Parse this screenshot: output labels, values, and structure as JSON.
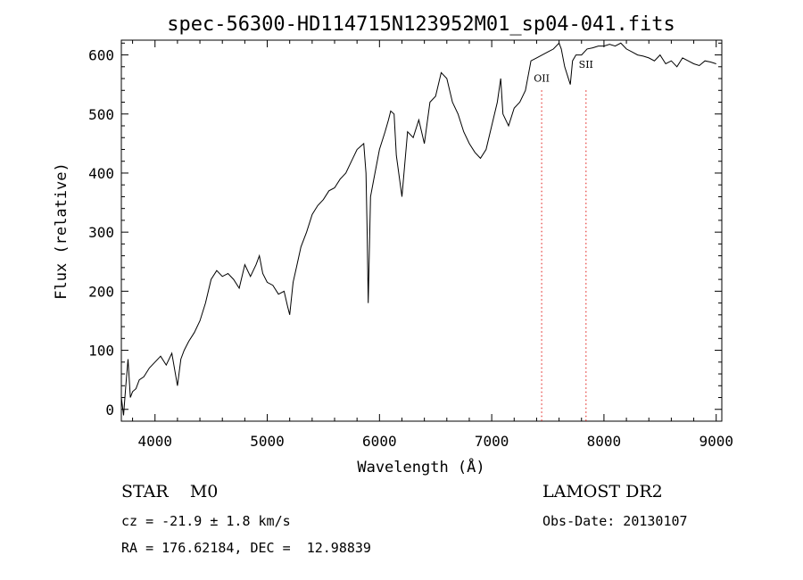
{
  "chart_data": {
    "type": "line",
    "title": "spec-56300-HD114715N123952M01_sp04-041.fits",
    "xlabel": "Wavelength (Å)",
    "ylabel": "Flux (relative)",
    "xlim": [
      3700,
      9050
    ],
    "ylim": [
      -20,
      625
    ],
    "x_ticks": [
      4000,
      5000,
      6000,
      7000,
      8000,
      9000
    ],
    "y_ticks": [
      0,
      100,
      200,
      300,
      400,
      500,
      600
    ],
    "grid": false,
    "series": [
      {
        "x": [
          3700,
          3720,
          3740,
          3760,
          3780,
          3800,
          3830,
          3860,
          3900,
          3950,
          4000,
          4050,
          4100,
          4150,
          4200,
          4230,
          4260,
          4300,
          4350,
          4400,
          4450,
          4500,
          4550,
          4600,
          4650,
          4700,
          4750,
          4800,
          4850,
          4900,
          4930,
          4960,
          5000,
          5050,
          5100,
          5150,
          5180,
          5200,
          5230,
          5260,
          5300,
          5350,
          5400,
          5450,
          5500,
          5550,
          5600,
          5650,
          5700,
          5750,
          5800,
          5830,
          5860,
          5880,
          5890,
          5900,
          5920,
          5950,
          6000,
          6050,
          6080,
          6100,
          6130,
          6150,
          6200,
          6250,
          6300,
          6350,
          6400,
          6450,
          6500,
          6550,
          6600,
          6650,
          6700,
          6750,
          6800,
          6850,
          6900,
          6950,
          7000,
          7050,
          7080,
          7100,
          7150,
          7200,
          7250,
          7300,
          7350,
          7400,
          7450,
          7500,
          7550,
          7600,
          7620,
          7650,
          7700,
          7720,
          7750,
          7800,
          7850,
          7900,
          7950,
          8000,
          8050,
          8100,
          8150,
          8200,
          8250,
          8300,
          8350,
          8400,
          8450,
          8500,
          8550,
          8600,
          8650,
          8700,
          8750,
          8800,
          8850,
          8900,
          8950,
          9000
        ],
        "y": [
          20,
          -10,
          40,
          85,
          20,
          30,
          35,
          50,
          55,
          70,
          80,
          90,
          75,
          95,
          40,
          85,
          100,
          115,
          130,
          150,
          180,
          220,
          235,
          225,
          230,
          220,
          205,
          245,
          225,
          245,
          260,
          230,
          215,
          210,
          195,
          200,
          175,
          160,
          215,
          240,
          275,
          300,
          330,
          345,
          355,
          370,
          375,
          390,
          400,
          420,
          440,
          445,
          450,
          400,
          300,
          180,
          360,
          390,
          440,
          470,
          490,
          505,
          500,
          430,
          360,
          470,
          460,
          490,
          450,
          520,
          530,
          570,
          560,
          520,
          500,
          470,
          450,
          435,
          425,
          440,
          480,
          520,
          560,
          500,
          480,
          510,
          520,
          540,
          590,
          595,
          600,
          605,
          610,
          620,
          610,
          580,
          550,
          590,
          600,
          600,
          610,
          612,
          615,
          615,
          618,
          615,
          620,
          610,
          605,
          600,
          598,
          595,
          590,
          600,
          585,
          590,
          580,
          595,
          590,
          585,
          582,
          590,
          588,
          585
        ]
      }
    ],
    "annotations": [
      {
        "label": "OII",
        "x": 7445
      },
      {
        "label": "SII",
        "x": 7840
      }
    ]
  },
  "info": {
    "object": "STAR    M0",
    "survey": "LAMOST DR2",
    "cz": "cz = -21.9 ± 1.8 km/s",
    "obs_date": "Obs-Date: 20130107",
    "coords": "RA = 176.62184, DEC =  12.98839"
  }
}
